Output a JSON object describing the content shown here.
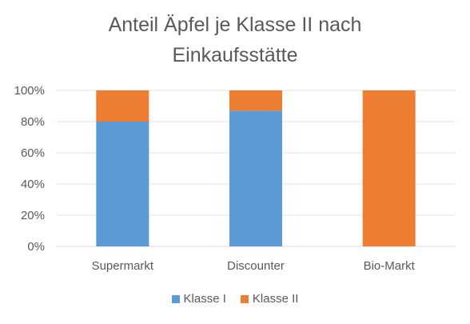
{
  "chart_data": {
    "type": "bar",
    "stacked": true,
    "title_lines": [
      "Anteil Äpfel je Klasse II nach",
      "Einkaufsstätte"
    ],
    "categories": [
      "Supermarkt",
      "Discounter",
      "Bio-Markt"
    ],
    "series": [
      {
        "name": "Klasse I",
        "color": "#5B9BD5",
        "values": [
          80,
          87,
          0
        ]
      },
      {
        "name": "Klasse II",
        "color": "#ED7D31",
        "values": [
          20,
          13,
          100
        ]
      }
    ],
    "yticks": [
      "0%",
      "20%",
      "40%",
      "60%",
      "80%",
      "100%"
    ],
    "ylim": [
      0,
      100
    ],
    "grid": true,
    "legend_position": "bottom"
  }
}
